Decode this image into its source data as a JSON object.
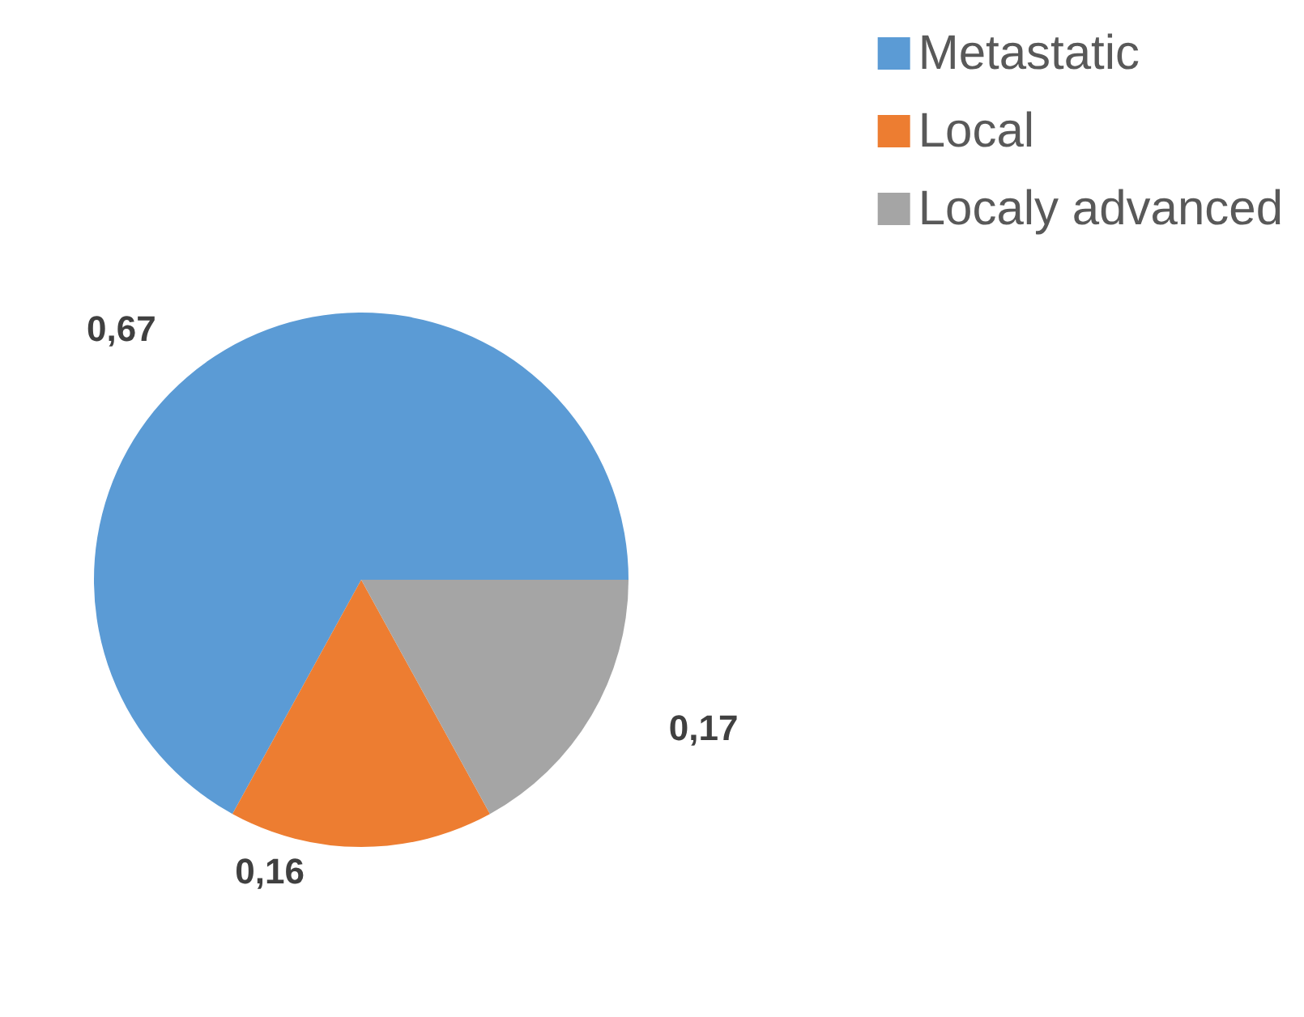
{
  "chart_data": {
    "type": "pie",
    "categories": [
      "Metastatic",
      "Local",
      "Localy advanced"
    ],
    "values": [
      0.67,
      0.16,
      0.17
    ],
    "value_labels": [
      "0,67",
      "0,16",
      "0,17"
    ],
    "colors": [
      "#5b9bd5",
      "#ed7d31",
      "#a5a5a5"
    ],
    "legend": "top right"
  }
}
